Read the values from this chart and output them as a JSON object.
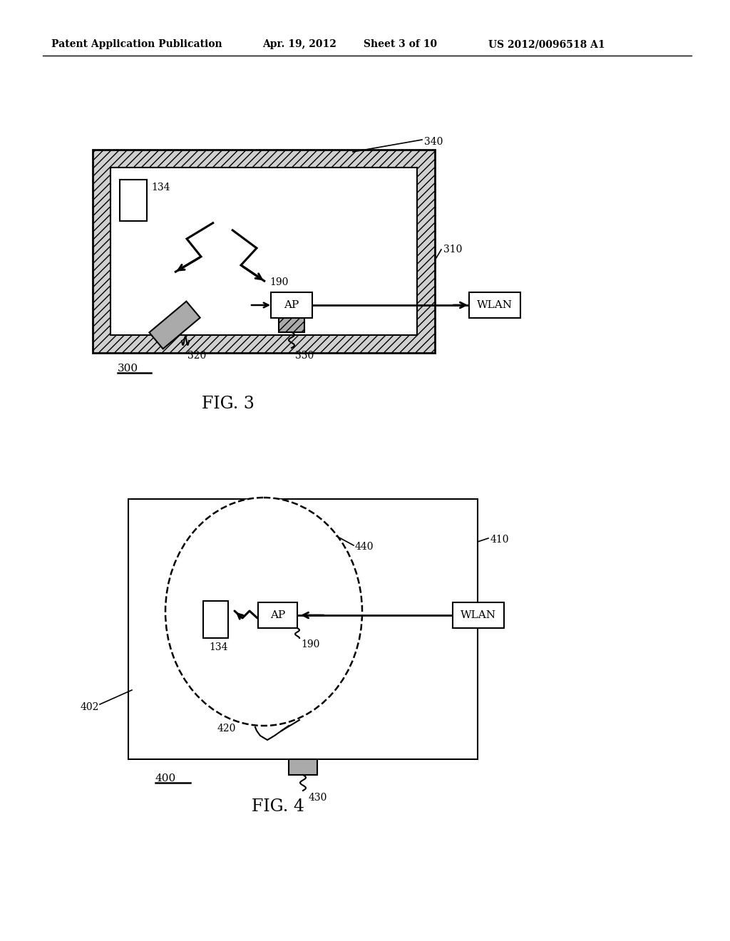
{
  "bg_color": "#ffffff",
  "header_text": "Patent Application Publication",
  "header_date": "Apr. 19, 2012",
  "header_sheet": "Sheet 3 of 10",
  "header_patent": "US 2012/0096518 A1",
  "fig3_label": "FIG. 3",
  "fig4_label": "FIG. 4",
  "fig3_num": "300",
  "fig4_num": "400",
  "label_134": "134",
  "label_190": "190",
  "label_310": "310",
  "label_320": "320",
  "label_330": "330",
  "label_340": "340",
  "label_402": "402",
  "label_410": "410",
  "label_420": "420",
  "label_430": "430",
  "label_440": "440",
  "label_AP": "AP",
  "label_WLAN": "WLAN"
}
